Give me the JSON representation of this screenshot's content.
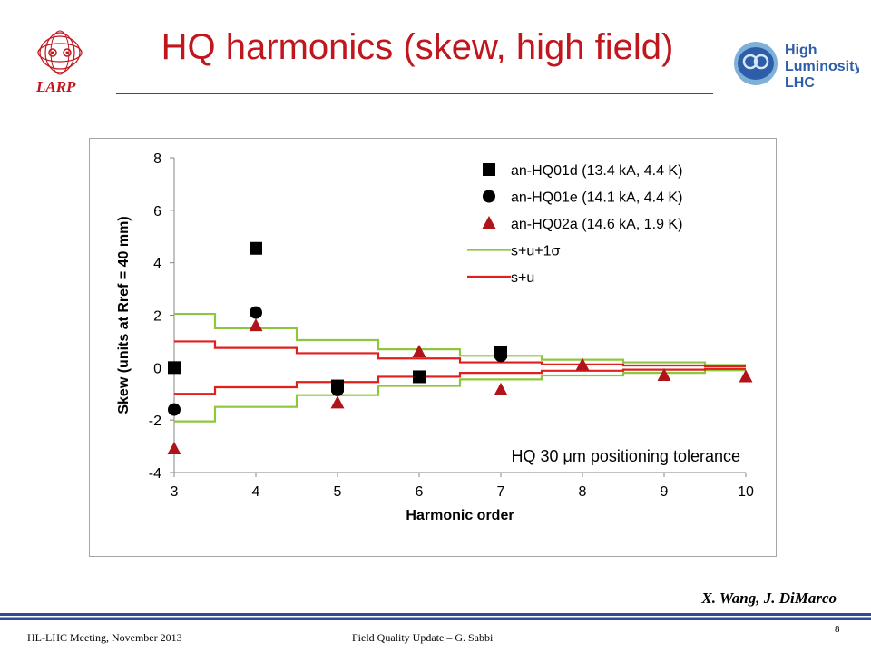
{
  "header": {
    "title": "HQ harmonics (skew, high field)",
    "left_logo_text": "LARP",
    "right_logo_words": [
      "High",
      "Luminosity",
      "LHC"
    ]
  },
  "colors": {
    "title": "#c0161d",
    "series_green": "#8dc63f",
    "series_red": "#e01f1f",
    "marker_black": "#000000",
    "marker_dark_red": "#b0131a",
    "footer_bar": "#2a4d9b"
  },
  "chart_data": {
    "type": "scatter",
    "title": "",
    "xlabel": "Harmonic order",
    "ylabel": "Skew (units at Rref = 40 mm)",
    "xlim": [
      3,
      10
    ],
    "ylim": [
      -4,
      8
    ],
    "x_ticks": [
      "3",
      "4",
      "5",
      "6",
      "7",
      "8",
      "9",
      "10"
    ],
    "y_ticks": [
      "-4",
      "-2",
      "0",
      "2",
      "4",
      "6",
      "8"
    ],
    "legend_position": "top-right",
    "annotation": "HQ 30 μm positioning tolerance",
    "series": [
      {
        "name": "an-HQ01d (13.4 kA, 4.4 K)",
        "marker": "square",
        "color": "#000000",
        "x": [
          3,
          4,
          5,
          6,
          7
        ],
        "y": [
          0.0,
          4.55,
          -0.7,
          -0.35,
          0.6
        ]
      },
      {
        "name": "an-HQ01e (14.1 kA, 4.4 K)",
        "marker": "circle",
        "color": "#000000",
        "x": [
          3,
          4,
          5,
          7
        ],
        "y": [
          -1.6,
          2.1,
          -0.85,
          0.45
        ]
      },
      {
        "name": "an-HQ02a (14.6 kA, 1.9 K)",
        "marker": "triangle",
        "color": "#b0131a",
        "x": [
          3,
          4,
          5,
          6,
          7,
          8,
          9,
          10
        ],
        "y": [
          -3.1,
          1.6,
          -1.35,
          0.6,
          -0.85,
          0.1,
          -0.3,
          -0.35
        ]
      },
      {
        "name": "s+u+1σ",
        "type": "step",
        "color": "#8dc63f",
        "x": [
          3,
          4,
          5,
          6,
          7,
          8,
          9,
          10
        ],
        "y": [
          2.05,
          1.5,
          1.05,
          0.7,
          0.45,
          0.3,
          0.2,
          0.1
        ]
      },
      {
        "name": "s+u",
        "type": "step",
        "color": "#e01f1f",
        "x": [
          3,
          4,
          5,
          6,
          7,
          8,
          9,
          10
        ],
        "y": [
          1.0,
          0.75,
          0.55,
          0.35,
          0.2,
          0.12,
          0.08,
          0.05
        ]
      }
    ]
  },
  "footer": {
    "authors": "X. Wang, J. DiMarco",
    "meeting": "HL-LHC Meeting, November 2013",
    "talk": "Field Quality Update – G. Sabbi",
    "page": "8"
  }
}
